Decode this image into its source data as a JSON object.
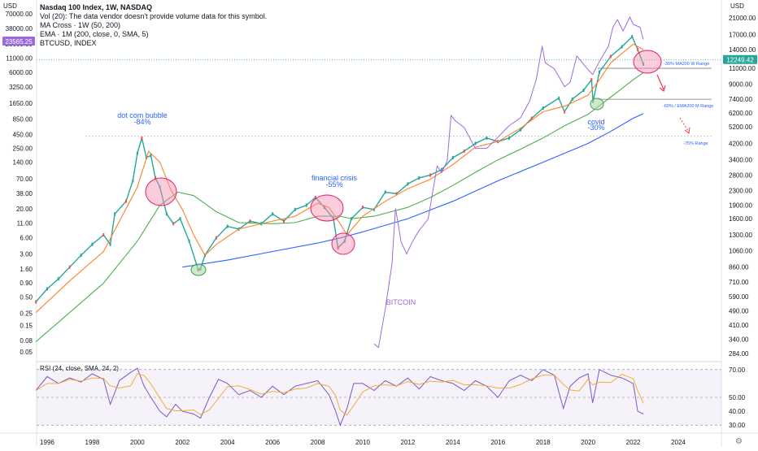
{
  "chart_data": {
    "type": "line",
    "title": "Nasdaq 100 Index, 1W, NASDAQ",
    "legend_lines": [
      "Vol (20): The data vendor doesn't provide volume data for this symbol.",
      "MA Cross · 1W (50, 200)",
      "EMA · 1M (200, close, 0, SMA, 5)",
      "BTCUSD, INDEX"
    ],
    "currency_left": "USD",
    "currency_right": "USD",
    "x_ticks": [
      "1996",
      "1998",
      "2000",
      "2002",
      "2004",
      "2006",
      "2008",
      "2010",
      "2012",
      "2014",
      "2016",
      "2018",
      "2020",
      "2022",
      "2024"
    ],
    "x_range": [
      1995.4,
      2025.3
    ],
    "left_axis_ticks": [
      "70000.00",
      "38000.00",
      "20000.00",
      "11000.00",
      "6000.00",
      "3250.00",
      "1650.00",
      "850.00",
      "450.00",
      "250.00",
      "140.00",
      "70.00",
      "38.00",
      "20.00",
      "11.00",
      "6.00",
      "3.00",
      "1.60",
      "0.90",
      "0.50",
      "0.25",
      "0.15",
      "0.08",
      "0.05"
    ],
    "left_axis_values": [
      70000,
      38000,
      20000,
      11000,
      6000,
      3250,
      1650,
      850,
      450,
      250,
      140,
      70,
      38,
      20,
      11,
      6,
      3,
      1.6,
      0.9,
      0.5,
      0.25,
      0.15,
      0.08,
      0.05
    ],
    "left_axis_scale": "log",
    "left_current_label": "23565.25",
    "right_axis_ticks": [
      "21000.00",
      "17000.00",
      "14000.00",
      "11000.00",
      "9000.00",
      "7400.00",
      "6200.00",
      "5200.00",
      "4200.00",
      "3400.00",
      "2800.00",
      "2300.00",
      "1900.00",
      "1600.00",
      "1300.00",
      "1060.00",
      "860.00",
      "710.00",
      "590.00",
      "490.00",
      "410.00",
      "340.00",
      "284.00"
    ],
    "right_axis_values": [
      21000,
      17000,
      14000,
      11000,
      9000,
      7400,
      6200,
      5200,
      4200,
      3400,
      2800,
      2300,
      1900,
      1600,
      1300,
      1060,
      860,
      710,
      590,
      490,
      410,
      340,
      284
    ],
    "right_axis_scale": "log",
    "right_current_label": "12249.42",
    "series": [
      {
        "name": "Nasdaq 100 Index",
        "color": "#26a69a",
        "x": [
          1995.5,
          1996.0,
          1996.5,
          1997.0,
          1997.5,
          1998.0,
          1998.5,
          1998.8,
          1999.0,
          1999.5,
          1999.8,
          2000.0,
          2000.2,
          2000.4,
          2000.6,
          2000.8,
          2001.0,
          2001.3,
          2001.6,
          2001.9,
          2002.3,
          2002.7,
          2002.8,
          2003.0,
          2003.5,
          2004.0,
          2004.5,
          2005.0,
          2005.5,
          2006.0,
          2006.5,
          2007.0,
          2007.5,
          2007.9,
          2008.3,
          2008.7,
          2008.9,
          2009.2,
          2009.5,
          2010.0,
          2010.5,
          2011.0,
          2011.5,
          2012.0,
          2012.5,
          2013.0,
          2013.5,
          2014.0,
          2014.5,
          2015.0,
          2015.5,
          2016.0,
          2016.5,
          2017.0,
          2017.5,
          2018.0,
          2018.7,
          2018.95,
          2019.3,
          2019.8,
          2020.15,
          2020.22,
          2020.5,
          2021.0,
          2021.5,
          2021.95,
          2022.2,
          2022.45
        ],
        "values": [
          550,
          650,
          740,
          860,
          1000,
          1150,
          1300,
          1150,
          1700,
          2000,
          2600,
          3700,
          4500,
          3500,
          3600,
          2700,
          2400,
          1700,
          1500,
          1600,
          1200,
          830,
          840,
          1000,
          1250,
          1450,
          1400,
          1550,
          1500,
          1700,
          1550,
          1800,
          1900,
          2100,
          1850,
          1600,
          1100,
          1200,
          1600,
          1850,
          1800,
          2250,
          2200,
          2500,
          2700,
          2800,
          3000,
          3500,
          3800,
          4200,
          4500,
          4300,
          4500,
          5000,
          5800,
          6600,
          7500,
          6300,
          7400,
          8300,
          9500,
          7200,
          10500,
          12800,
          14500,
          16500,
          14000,
          11600
        ]
      },
      {
        "name": "MA Cross 50",
        "color": "#ff7f2a",
        "x": [
          1995.5,
          1997.0,
          1998.5,
          2000.0,
          2000.5,
          2001.0,
          2001.5,
          2002.0,
          2002.5,
          2003.0,
          2003.5,
          2004.5,
          2006.0,
          2007.0,
          2008.0,
          2008.5,
          2009.0,
          2009.3,
          2010.0,
          2011.0,
          2012.0,
          2013.0,
          2014.0,
          2015.0,
          2016.0,
          2017.0,
          2018.0,
          2019.0,
          2020.0,
          2020.5,
          2021.0,
          2022.0,
          2022.45
        ],
        "values": [
          480,
          720,
          1050,
          2400,
          3800,
          3300,
          2300,
          1800,
          1300,
          1000,
          1150,
          1400,
          1550,
          1650,
          1950,
          1850,
          1500,
          1300,
          1650,
          2000,
          2350,
          2650,
          3200,
          4000,
          4300,
          5100,
          6300,
          6800,
          7800,
          9500,
          11800,
          15000,
          14000
        ]
      },
      {
        "name": "MA Cross 200",
        "color": "#4caf50",
        "x": [
          1995.5,
          1997.0,
          1998.5,
          2000.0,
          2001.0,
          2001.8,
          2002.5,
          2003.5,
          2004.5,
          2006.0,
          2007.0,
          2008.0,
          2009.0,
          2009.5,
          2010.5,
          2012.0,
          2013.0,
          2014.0,
          2015.0,
          2016.0,
          2017.0,
          2018.0,
          2019.0,
          2020.0,
          2021.0,
          2022.0,
          2022.45
        ],
        "values": [
          330,
          480,
          700,
          1200,
          1900,
          2250,
          2150,
          1750,
          1520,
          1500,
          1520,
          1650,
          1650,
          1600,
          1650,
          1850,
          2100,
          2450,
          2900,
          3400,
          3900,
          4500,
          5300,
          6100,
          7600,
          9500,
          10400
        ]
      },
      {
        "name": "EMA 1M (200)",
        "color": "#2962ff",
        "x": [
          2002.0,
          2004.0,
          2006.0,
          2008.0,
          2009.0,
          2010.0,
          2012.0,
          2014.0,
          2016.0,
          2018.0,
          2020.0,
          2021.0,
          2022.0,
          2022.45
        ],
        "values": [
          860,
          940,
          1050,
          1170,
          1250,
          1350,
          1600,
          2000,
          2600,
          3300,
          4200,
          4900,
          5800,
          6150
        ]
      },
      {
        "name": "BTCUSD",
        "color": "#9c6ade",
        "x": [
          2010.5,
          2010.7,
          2011.0,
          2011.3,
          2011.45,
          2011.55,
          2011.7,
          2011.95,
          2012.2,
          2012.5,
          2012.9,
          2013.3,
          2013.5,
          2013.75,
          2013.92,
          2014.1,
          2014.5,
          2015.0,
          2015.5,
          2016.0,
          2016.5,
          2017.0,
          2017.4,
          2017.7,
          2017.96,
          2018.1,
          2018.5,
          2018.96,
          2019.2,
          2019.5,
          2019.9,
          2020.2,
          2020.5,
          2020.9,
          2021.1,
          2021.3,
          2021.55,
          2021.85,
          2022.0,
          2022.3,
          2022.45
        ],
        "values": [
          0.07,
          0.06,
          0.3,
          2,
          20,
          12,
          5,
          3,
          5,
          8,
          13,
          120,
          90,
          150,
          1000,
          800,
          600,
          250,
          250,
          400,
          650,
          900,
          1800,
          4500,
          18000,
          9000,
          7000,
          3300,
          4000,
          12000,
          7500,
          5500,
          9500,
          18000,
          40000,
          55000,
          34000,
          61000,
          45000,
          40000,
          24000
        ]
      }
    ],
    "rsi": {
      "label": "RSI (24, close, SMA, 24, 2)",
      "ticks": [
        "70.00",
        "50.00",
        "40.00",
        "30.00"
      ],
      "tick_values": [
        70,
        50,
        40,
        30
      ],
      "y_range": [
        26,
        74
      ],
      "band": [
        30,
        70
      ],
      "x": [
        1995.5,
        1996.0,
        1996.5,
        1997.0,
        1997.5,
        1998.0,
        1998.5,
        1998.8,
        1999.2,
        1999.7,
        2000.0,
        2000.3,
        2000.6,
        2001.0,
        2001.3,
        2001.7,
        2002.0,
        2002.5,
        2002.8,
        2003.2,
        2003.6,
        2004.0,
        2004.5,
        2005.0,
        2005.5,
        2006.0,
        2006.5,
        2007.0,
        2007.5,
        2008.0,
        2008.5,
        2008.8,
        2009.0,
        2009.3,
        2009.6,
        2010.0,
        2010.5,
        2011.0,
        2011.5,
        2012.0,
        2012.5,
        2013.0,
        2013.5,
        2014.0,
        2014.5,
        2015.0,
        2015.5,
        2016.0,
        2016.5,
        2017.0,
        2017.5,
        2018.0,
        2018.5,
        2018.9,
        2019.2,
        2019.6,
        2020.0,
        2020.2,
        2020.5,
        2021.0,
        2021.5,
        2022.0,
        2022.2,
        2022.45
      ],
      "values": [
        55,
        65,
        60,
        64,
        61,
        67,
        63,
        45,
        62,
        68,
        71,
        58,
        50,
        40,
        36,
        45,
        40,
        38,
        35,
        50,
        63,
        60,
        52,
        55,
        50,
        58,
        52,
        58,
        60,
        62,
        52,
        40,
        30,
        42,
        60,
        60,
        55,
        62,
        58,
        64,
        56,
        65,
        62,
        60,
        55,
        62,
        58,
        50,
        62,
        66,
        62,
        70,
        66,
        42,
        58,
        64,
        67,
        46,
        70,
        66,
        64,
        60,
        40,
        38
      ]
    },
    "annotations": [
      {
        "text": "dot com bubble",
        "color": "#2962ff"
      },
      {
        "text": "-84%",
        "color": "#2962ff"
      },
      {
        "text": "financial crisis",
        "color": "#2962ff"
      },
      {
        "text": "-55%",
        "color": "#2962ff"
      },
      {
        "text": "covid",
        "color": "#2962ff"
      },
      {
        "text": "-30%",
        "color": "#2962ff"
      },
      {
        "text": "BITCOIN",
        "color": "#9c6ade"
      },
      {
        "text": "-30% MA200 W Range",
        "color": "#2962ff"
      },
      {
        "text": "-60% / EMA200 M Range",
        "color": "#2962ff"
      },
      {
        "text": "-75% Range",
        "color": "#2962ff"
      }
    ],
    "range_levels": [
      {
        "label": "-30% MA200 W Range",
        "value": 11000
      },
      {
        "label": "-60% / EMA200 M Range",
        "value": 7400
      },
      {
        "label": "-75% Range",
        "value": 4600
      }
    ],
    "grid": false
  }
}
